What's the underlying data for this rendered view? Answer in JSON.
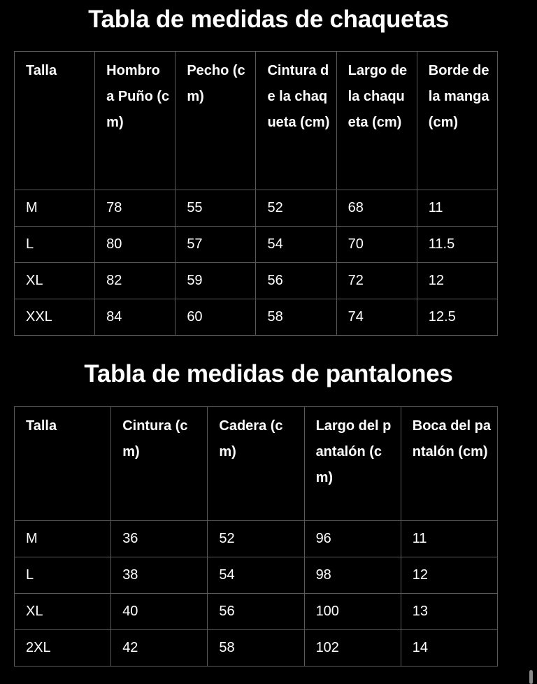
{
  "jackets": {
    "title": "Tabla de medidas de chaquetas",
    "headers": [
      "Talla",
      "Hombro a Puño (cm)",
      "Pecho (cm)",
      "Cintura de la chaqueta (cm)",
      "Largo de la chaqueta (cm)",
      "Borde de la manga (cm)"
    ],
    "rows": [
      [
        "M",
        "78",
        "55",
        "52",
        "68",
        "11"
      ],
      [
        "L",
        "80",
        "57",
        "54",
        "70",
        "11.5"
      ],
      [
        "XL",
        "82",
        "59",
        "56",
        "72",
        "12"
      ],
      [
        "XXL",
        "84",
        "60",
        "58",
        "74",
        "12.5"
      ]
    ]
  },
  "pants": {
    "title": "Tabla de medidas de pantalones",
    "headers": [
      "Talla",
      "Cintura (cm)",
      "Cadera (cm)",
      "Largo del pantalón (cm)",
      "Boca del pantalón (cm)"
    ],
    "rows": [
      [
        "M",
        "36",
        "52",
        "96",
        "11"
      ],
      [
        "L",
        "38",
        "54",
        "98",
        "12"
      ],
      [
        "XL",
        "40",
        "56",
        "100",
        "13"
      ],
      [
        "2XL",
        "42",
        "58",
        "102",
        "14"
      ]
    ]
  }
}
